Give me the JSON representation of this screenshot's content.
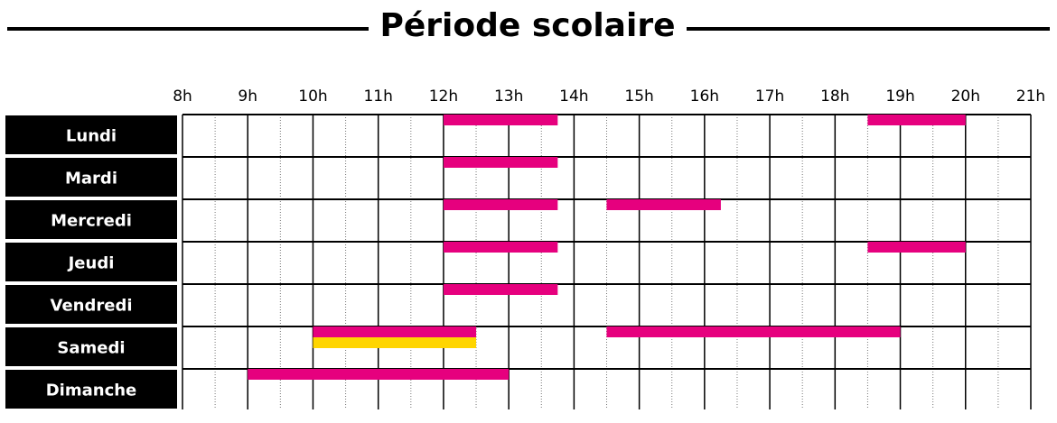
{
  "title": "Période scolaire",
  "hours": [
    {
      "value": 8,
      "label": "8h"
    },
    {
      "value": 9,
      "label": "9h"
    },
    {
      "value": 10,
      "label": "10h"
    },
    {
      "value": 11,
      "label": "11h"
    },
    {
      "value": 12,
      "label": "12h"
    },
    {
      "value": 13,
      "label": "13h"
    },
    {
      "value": 14,
      "label": "14h"
    },
    {
      "value": 15,
      "label": "15h"
    },
    {
      "value": 16,
      "label": "16h"
    },
    {
      "value": 17,
      "label": "17h"
    },
    {
      "value": 18,
      "label": "18h"
    },
    {
      "value": 19,
      "label": "19h"
    },
    {
      "value": 20,
      "label": "20h"
    },
    {
      "value": 21,
      "label": "21h"
    }
  ],
  "days": [
    {
      "name": "Lundi",
      "slots": [
        {
          "start": 12,
          "end": 13.75,
          "color": "#e6007e"
        },
        {
          "start": 18.5,
          "end": 20,
          "color": "#e6007e"
        }
      ]
    },
    {
      "name": "Mardi",
      "slots": [
        {
          "start": 12,
          "end": 13.75,
          "color": "#e6007e"
        }
      ]
    },
    {
      "name": "Mercredi",
      "slots": [
        {
          "start": 12,
          "end": 13.75,
          "color": "#e6007e"
        },
        {
          "start": 14.5,
          "end": 16.25,
          "color": "#e6007e"
        }
      ]
    },
    {
      "name": "Jeudi",
      "slots": [
        {
          "start": 12,
          "end": 13.75,
          "color": "#e6007e"
        },
        {
          "start": 18.5,
          "end": 20,
          "color": "#e6007e"
        }
      ]
    },
    {
      "name": "Vendredi",
      "slots": [
        {
          "start": 12,
          "end": 13.75,
          "color": "#e6007e"
        }
      ]
    },
    {
      "name": "Samedi",
      "slots": [
        {
          "start": 10,
          "end": 12.5,
          "color": "#e6007e"
        },
        {
          "start": 10,
          "end": 12.5,
          "color": "#ffd500"
        },
        {
          "start": 14.5,
          "end": 19,
          "color": "#e6007e"
        }
      ]
    },
    {
      "name": "Dimanche",
      "slots": [
        {
          "start": 9,
          "end": 13,
          "color": "#e6007e"
        }
      ]
    }
  ]
}
